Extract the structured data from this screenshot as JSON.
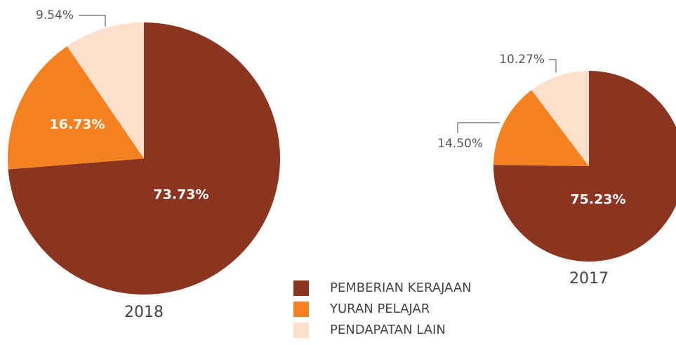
{
  "legend": {
    "categories": [
      "PEMBERIAN KERAJAAN",
      "YURAN PELAJAR",
      "PENDAPATAN LAIN"
    ],
    "colors": [
      "#8b3520",
      "#f58220",
      "#fddfcb"
    ]
  },
  "chart_data": [
    {
      "type": "pie",
      "title": "2018",
      "values": [
        73.73,
        16.73,
        9.54
      ],
      "value_labels": [
        "73.73%",
        "16.73%",
        "9.54%"
      ]
    },
    {
      "type": "pie",
      "title": "2017",
      "values": [
        75.23,
        14.5,
        10.27
      ],
      "value_labels": [
        "75.23%",
        "14.50%",
        "10.27%"
      ]
    }
  ]
}
